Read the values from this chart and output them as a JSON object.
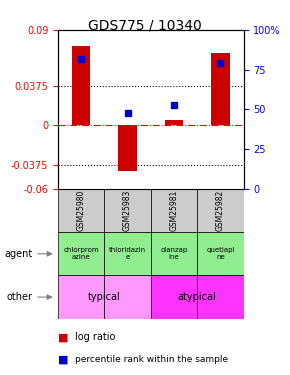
{
  "title": "GDS775 / 10340",
  "samples": [
    "GSM25980",
    "GSM25983",
    "GSM25981",
    "GSM25982"
  ],
  "log_ratio": [
    0.075,
    -0.043,
    0.005,
    0.068
  ],
  "percentile_rank": [
    82,
    48,
    53,
    79
  ],
  "ylim_left": [
    -0.06,
    0.09
  ],
  "ylim_right": [
    0,
    100
  ],
  "yticks_left": [
    -0.06,
    -0.0375,
    0,
    0.0375,
    0.09
  ],
  "ytick_labels_left": [
    "-0.06",
    "-0.0375",
    "0",
    "0.0375",
    "0.09"
  ],
  "yticks_right": [
    0,
    25,
    50,
    75,
    100
  ],
  "ytick_labels_right": [
    "0",
    "25",
    "50",
    "75",
    "100%"
  ],
  "hline_dotted": [
    0.0375,
    -0.0375
  ],
  "hline_dashdot": 0,
  "agent_labels": [
    "chlorprom\nazine",
    "thioridazin\ne",
    "olanzap\nine",
    "quetiapi\nne"
  ],
  "other_labels": [
    "typical",
    "typical",
    "atypical",
    "atypical"
  ],
  "agent_color": "#90EE90",
  "other_typical_color": "#FF99FF",
  "other_atypical_color": "#FF33FF",
  "sample_bg_color": "#CCCCCC",
  "bar_width": 0.4,
  "bar_color_red": "#CC0000",
  "dot_color_blue": "#0000CC",
  "dot_size": 4
}
